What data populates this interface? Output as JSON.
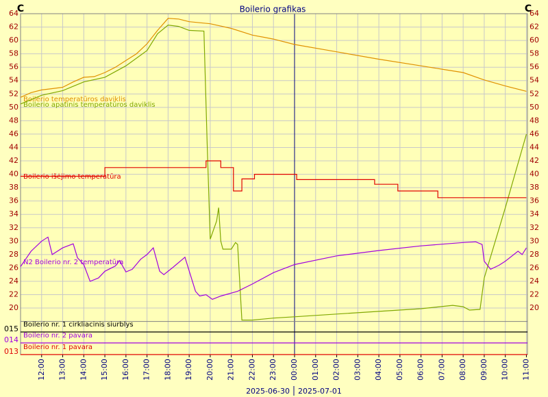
{
  "chart_data": {
    "type": "line",
    "title": "Boilerio grafikas",
    "y_unit_left": "C",
    "y_unit_right": "C",
    "dates": [
      "2025-06-30",
      "2025-07-01"
    ],
    "xlim": [
      11,
      35.05
    ],
    "ylim": [
      18,
      64
    ],
    "grid": true,
    "xticks": [
      {
        "value": 12,
        "label": "12:00"
      },
      {
        "value": 13,
        "label": "13:00"
      },
      {
        "value": 14,
        "label": "14:00"
      },
      {
        "value": 15,
        "label": "15:00"
      },
      {
        "value": 16,
        "label": "16:00"
      },
      {
        "value": 17,
        "label": "17:00"
      },
      {
        "value": 18,
        "label": "18:00"
      },
      {
        "value": 19,
        "label": "19:00"
      },
      {
        "value": 20,
        "label": "20:00"
      },
      {
        "value": 21,
        "label": "21:00"
      },
      {
        "value": 22,
        "label": "22:00"
      },
      {
        "value": 23,
        "label": "23:00"
      },
      {
        "value": 24,
        "label": "00:00"
      },
      {
        "value": 25,
        "label": "01:00"
      },
      {
        "value": 26,
        "label": "02:00"
      },
      {
        "value": 27,
        "label": "03:00"
      },
      {
        "value": 28,
        "label": "04:00"
      },
      {
        "value": 29,
        "label": "05:00"
      },
      {
        "value": 30,
        "label": "06:00"
      },
      {
        "value": 31,
        "label": "07:00"
      },
      {
        "value": 32,
        "label": "08:00"
      },
      {
        "value": 33,
        "label": "09:00"
      },
      {
        "value": 34,
        "label": "10:00"
      },
      {
        "value": 35,
        "label": "11:00"
      }
    ],
    "yticks": [
      20,
      22,
      24,
      26,
      28,
      30,
      32,
      34,
      36,
      38,
      40,
      42,
      44,
      46,
      48,
      50,
      52,
      54,
      56,
      58,
      60,
      62,
      64
    ],
    "series": [
      {
        "name": "Boilerio temperatūros daviklis",
        "color": "#e09000",
        "x": [
          11,
          11.5,
          12,
          12.5,
          13,
          13.5,
          14,
          14.5,
          15,
          15.5,
          16,
          16.5,
          17,
          17.5,
          18,
          18.5,
          19,
          20,
          21,
          22,
          23,
          24,
          26,
          28,
          30,
          31,
          32,
          33,
          34,
          35
        ],
        "values": [
          51.5,
          52.2,
          52.6,
          52.8,
          53,
          53.8,
          54.5,
          54.6,
          55.2,
          56,
          57,
          58,
          59.5,
          61.5,
          63.3,
          63.2,
          62.8,
          62.5,
          61.8,
          60.8,
          60.2,
          59.4,
          58.3,
          57.2,
          56.2,
          55.7,
          55.2,
          54.1,
          53.2,
          52.4
        ]
      },
      {
        "name": "Boilerio apatinis temperatūros daviklis",
        "color": "#80a800",
        "x": [
          11,
          12,
          13,
          14,
          15,
          16,
          17,
          17.5,
          18,
          18.5,
          19,
          19.7,
          19.85,
          20,
          20.3,
          20.4,
          20.5,
          20.6,
          21,
          21.2,
          21.3,
          21.5,
          22,
          23,
          24,
          26,
          28,
          30,
          31.5,
          32,
          32.3,
          32.8,
          33,
          34,
          35
        ],
        "values": [
          50.5,
          51.8,
          52.5,
          53.8,
          54.5,
          56.2,
          58.5,
          61,
          62.3,
          62.1,
          61.5,
          61.4,
          45,
          30.3,
          33,
          35,
          30,
          28.8,
          28.8,
          29.8,
          29.5,
          18.2,
          18.2,
          18.5,
          18.7,
          19.1,
          19.5,
          19.9,
          20.4,
          20.2,
          19.7,
          19.8,
          24.5,
          35,
          46
        ]
      },
      {
        "name": "Boilerio išėjimo temperatūra",
        "color": "#e00000",
        "x": [
          11,
          15,
          15,
          19.8,
          19.8,
          20.5,
          20.5,
          21.1,
          21.1,
          21.5,
          21.5,
          22.1,
          22.1,
          24.1,
          24.1,
          27.8,
          27.8,
          28.9,
          28.9,
          30.8,
          30.8,
          35
        ],
        "values": [
          39.7,
          39.7,
          41,
          41,
          42,
          42,
          41,
          41,
          37.5,
          37.5,
          39.3,
          39.3,
          40,
          40,
          39.2,
          39.2,
          38.5,
          38.5,
          37.5,
          37.5,
          36.5,
          36.5
        ]
      },
      {
        "name": "N2 Boilerio nr. 2 temperatūra",
        "color": "#a000e0",
        "x": [
          11,
          11.5,
          12,
          12.3,
          12.5,
          13,
          13.5,
          13.7,
          14,
          14.3,
          14.7,
          15,
          15.5,
          15.7,
          16,
          16.3,
          16.7,
          17,
          17.3,
          17.6,
          17.8,
          18.2,
          18.8,
          19.3,
          19.5,
          19.8,
          20.1,
          20.5,
          21.3,
          22,
          23,
          24,
          26,
          28,
          30,
          32,
          32.6,
          32.9,
          33,
          33.3,
          33.7,
          34,
          34.6,
          34.8,
          35
        ],
        "values": [
          26.2,
          28.5,
          30,
          30.6,
          28,
          29,
          29.6,
          27.5,
          26.5,
          24,
          24.5,
          25.5,
          26.3,
          27.1,
          25.4,
          25.8,
          27.3,
          28,
          29,
          25.5,
          25,
          26,
          27.6,
          22.5,
          21.8,
          22,
          21.3,
          21.8,
          22.5,
          23.6,
          25.3,
          26.5,
          27.8,
          28.6,
          29.3,
          29.8,
          29.9,
          29.5,
          27,
          25.8,
          26.4,
          27,
          28.5,
          28,
          29
        ]
      }
    ],
    "digital": [
      {
        "id": "015",
        "name": "Boilerio nr. 1 cirkliacinis siurblys",
        "color": "#000000"
      },
      {
        "id": "014",
        "name": "Boilerio nr. 2 pavara",
        "color": "#a000e0"
      },
      {
        "id": "013",
        "name": "Boilerio nr. 1 pavara",
        "color": "#e00000"
      }
    ]
  }
}
